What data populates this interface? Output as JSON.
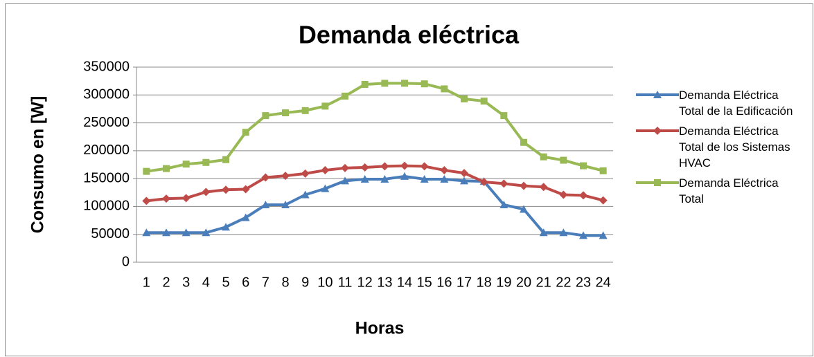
{
  "chart_data": {
    "type": "line",
    "title": "Demanda eléctrica",
    "x_label": "Horas",
    "y_label": "Consumo en [W]",
    "categories": [
      "1",
      "2",
      "3",
      "4",
      "5",
      "6",
      "7",
      "8",
      "9",
      "10",
      "11",
      "12",
      "13",
      "14",
      "15",
      "16",
      "17",
      "18",
      "19",
      "20",
      "21",
      "22",
      "23",
      "24"
    ],
    "series": [
      {
        "name": "Demanda Eléctrica Total de la Edificación",
        "color": "#4a7ebb",
        "marker": "triangle",
        "values": [
          53000,
          53000,
          53000,
          53000,
          63000,
          80000,
          103000,
          103000,
          121000,
          132000,
          146000,
          149000,
          149000,
          154000,
          149000,
          149000,
          146000,
          145000,
          103000,
          95000,
          53000,
          53000,
          48000,
          48000
        ]
      },
      {
        "name": "Demanda Eléctrica Total de los Sistemas HVAC",
        "color": "#be4b48",
        "marker": "diamond",
        "values": [
          110000,
          114000,
          115000,
          126000,
          130000,
          131000,
          152000,
          155000,
          159000,
          165000,
          169000,
          170000,
          172000,
          173000,
          172000,
          165000,
          160000,
          144000,
          141000,
          137000,
          135000,
          121000,
          120000,
          111000
        ]
      },
      {
        "name": "Demanda Eléctrica Total",
        "color": "#98b954",
        "marker": "square",
        "values": [
          163000,
          168000,
          176000,
          179000,
          184000,
          233000,
          263000,
          268000,
          272000,
          280000,
          298000,
          319000,
          321000,
          321000,
          320000,
          311000,
          293000,
          289000,
          263000,
          215000,
          189000,
          183000,
          173000,
          164000
        ]
      }
    ],
    "ylim": [
      0,
      350000
    ],
    "yticks": [
      0,
      50000,
      100000,
      150000,
      200000,
      250000,
      300000,
      350000
    ],
    "grid": true,
    "legend": "right"
  }
}
